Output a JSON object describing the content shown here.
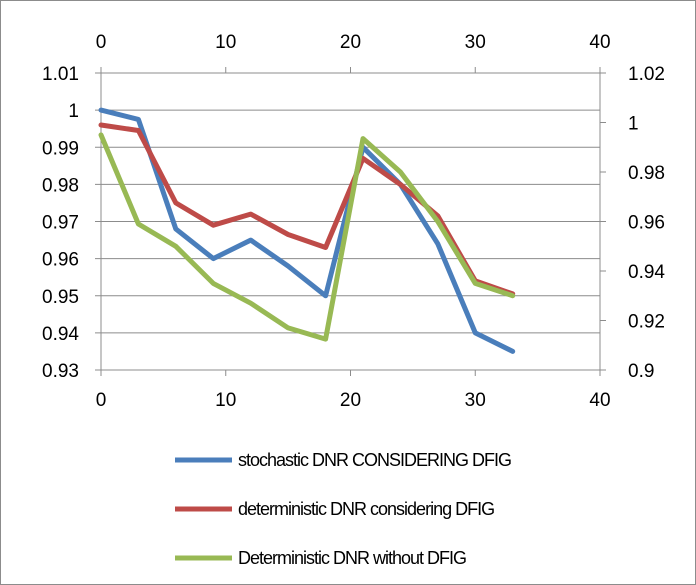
{
  "chart_data": {
    "type": "line",
    "title": "",
    "xlabel": "",
    "ylabel": "",
    "x_ticks_top": [
      "0",
      "10",
      "20",
      "30",
      "40"
    ],
    "x_ticks_bottom": [
      "0",
      "10",
      "20",
      "30",
      "40"
    ],
    "xlim": [
      0,
      40
    ],
    "y_left_ticks": [
      "0.93",
      "0.94",
      "0.95",
      "0.96",
      "0.97",
      "0.98",
      "0.99",
      "1",
      "1.01"
    ],
    "ylim_left": [
      0.93,
      1.01
    ],
    "y_right_ticks": [
      "0.9",
      "0.92",
      "0.94",
      "0.96",
      "0.98",
      "1",
      "1.02"
    ],
    "ylim_right": [
      0.9,
      1.02
    ],
    "grid": "horizontal",
    "legend_position": "bottom",
    "series": [
      {
        "name": "stochastic DNR CONSIDERING DFIG",
        "axis": "left",
        "color": "#4a7ebb",
        "x": [
          0,
          3,
          6,
          9,
          12,
          15,
          18,
          21,
          24,
          27,
          30,
          33
        ],
        "y": [
          1.0,
          0.9975,
          0.968,
          0.96,
          0.965,
          0.958,
          0.95,
          0.99,
          0.98,
          0.964,
          0.94,
          0.935
        ]
      },
      {
        "name": "deterministic DNR considering DFIG",
        "axis": "left",
        "color": "#be4b48",
        "x": [
          0,
          3,
          6,
          9,
          12,
          15,
          18,
          21,
          24,
          27,
          30,
          33
        ],
        "y": [
          0.996,
          0.9945,
          0.975,
          0.969,
          0.972,
          0.9665,
          0.963,
          0.987,
          0.98,
          0.9715,
          0.954,
          0.9505
        ]
      },
      {
        "name": "Deterministic DNR without DFIG",
        "axis": "right",
        "color": "#98b954",
        "x": [
          0,
          3,
          6,
          9,
          12,
          15,
          18,
          21,
          24,
          27,
          30,
          33
        ],
        "y": [
          0.995,
          0.959,
          0.95,
          0.935,
          0.927,
          0.917,
          0.9125,
          0.9935,
          0.98,
          0.96,
          0.935,
          0.93
        ]
      }
    ]
  }
}
